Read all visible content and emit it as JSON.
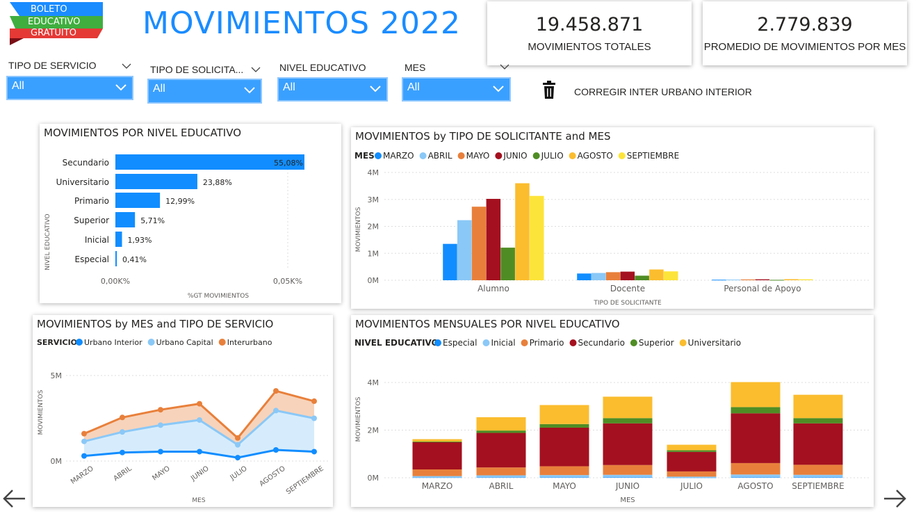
{
  "logo": {
    "line1": "BOLETO",
    "line2": "EDUCATIVO",
    "line3": "GRATUITO"
  },
  "title": "MOVIMIENTOS 2022",
  "kpis": [
    {
      "value": "19.458.871",
      "label": "MOVIMIENTOS TOTALES"
    },
    {
      "value": "2.779.839",
      "label": "PROMEDIO DE MOVIMIENTOS POR MES"
    }
  ],
  "filters": [
    {
      "label": "TIPO DE SERVICIO",
      "value": "All"
    },
    {
      "label": "TIPO DE SOLICITA...",
      "value": "All"
    },
    {
      "label": "NIVEL EDUCATIVO",
      "value": "All"
    },
    {
      "label": "MES",
      "value": "All"
    }
  ],
  "action": {
    "label": "CORREGIR INTER URBANO INTERIOR",
    "icon": "trash-icon"
  },
  "colors": {
    "accent": "#1a8cff",
    "blue": "#118dff",
    "lightblue": "#8ac8f7",
    "orange": "#e8803b",
    "darkred": "#a4101f",
    "green": "#4f8d24",
    "yellow": "#fbbd2e",
    "brightyellow": "#fde43a"
  },
  "chart_data": [
    {
      "type": "bar",
      "orientation": "horizontal",
      "title": "MOVIMIENTOS POR NIVEL EDUCATIVO",
      "xlabel": "%GT MOVIMIENTOS",
      "ylabel": "NIVEL EDUCATIVO",
      "categories": [
        "Secundario",
        "Universitario",
        "Primario",
        "Superior",
        "Inicial",
        "Especial"
      ],
      "values": [
        55.08,
        23.88,
        12.99,
        5.71,
        1.93,
        0.41
      ],
      "data_labels": [
        "55,08%",
        "23,88%",
        "12,99%",
        "5,71%",
        "1,93%",
        "0,41%"
      ],
      "x_ticks": [
        "0,00K%",
        "0,05K%"
      ]
    },
    {
      "type": "bar",
      "title": "MOVIMIENTOS by TIPO DE SOLICITANTE and MES",
      "xlabel": "TIPO DE SOLICITANTE",
      "ylabel": "MOVIMIENTOS",
      "legend_title": "MES",
      "categories": [
        "Alumno",
        "Docente",
        "Personal de Apoyo"
      ],
      "y_ticks": [
        "0M",
        "1M",
        "2M",
        "3M",
        "4M"
      ],
      "ylim": [
        0,
        4000000
      ],
      "series": [
        {
          "name": "MARZO",
          "color": "#118dff",
          "values": [
            1350000,
            250000,
            20000
          ]
        },
        {
          "name": "ABRIL",
          "color": "#8ac8f7",
          "values": [
            2230000,
            270000,
            25000
          ]
        },
        {
          "name": "MAYO",
          "color": "#e8803b",
          "values": [
            2730000,
            300000,
            30000
          ]
        },
        {
          "name": "JUNIO",
          "color": "#a4101f",
          "values": [
            3020000,
            320000,
            35000
          ]
        },
        {
          "name": "JULIO",
          "color": "#4f8d24",
          "values": [
            1210000,
            170000,
            15000
          ]
        },
        {
          "name": "AGOSTO",
          "color": "#fbbd2e",
          "values": [
            3600000,
            400000,
            40000
          ]
        },
        {
          "name": "SEPTIEMBRE",
          "color": "#fde43a",
          "values": [
            3130000,
            330000,
            35000
          ]
        }
      ]
    },
    {
      "type": "area",
      "stacked": true,
      "title": "MOVIMIENTOS by MES and TIPO DE SERVICIO",
      "xlabel": "MES",
      "ylabel": "MOVIMIENTOS",
      "legend_title": "SERVICIO",
      "categories": [
        "MARZO",
        "ABRIL",
        "MAYO",
        "JUNIO",
        "JULIO",
        "AGOSTO",
        "SEPTIEMBRE"
      ],
      "y_ticks": [
        "0M",
        "5M"
      ],
      "ylim": [
        0,
        5000000
      ],
      "series": [
        {
          "name": "Urbano Interior",
          "color": "#118dff",
          "values": [
            300000,
            500000,
            550000,
            550000,
            200000,
            650000,
            550000
          ]
        },
        {
          "name": "Urbano Capital",
          "color": "#8ac8f7",
          "values": [
            850000,
            1200000,
            1550000,
            1850000,
            750000,
            2300000,
            1950000
          ]
        },
        {
          "name": "Interurbano",
          "color": "#e8803b",
          "values": [
            450000,
            850000,
            900000,
            950000,
            400000,
            1150000,
            1000000
          ]
        }
      ]
    },
    {
      "type": "bar",
      "stacked": true,
      "title": "MOVIMIENTOS MENSUALES POR NIVEL EDUCATIVO",
      "xlabel": "MES",
      "ylabel": "MOVIMIENTOS",
      "legend_title": "NIVEL EDUCATIVO",
      "categories": [
        "MARZO",
        "ABRIL",
        "MAYO",
        "JUNIO",
        "JULIO",
        "AGOSTO",
        "SEPTIEMBRE"
      ],
      "y_ticks": [
        "0M",
        "2M",
        "4M"
      ],
      "ylim": [
        0,
        4000000
      ],
      "series": [
        {
          "name": "Especial",
          "color": "#118dff",
          "values": [
            10000,
            12000,
            13000,
            14000,
            6000,
            16000,
            14000
          ]
        },
        {
          "name": "Inicial",
          "color": "#8ac8f7",
          "values": [
            60000,
            90000,
            100000,
            110000,
            40000,
            120000,
            110000
          ]
        },
        {
          "name": "Primario",
          "color": "#e8803b",
          "values": [
            280000,
            330000,
            370000,
            410000,
            220000,
            480000,
            420000
          ]
        },
        {
          "name": "Secundario",
          "color": "#a4101f",
          "values": [
            1140000,
            1450000,
            1620000,
            1750000,
            820000,
            2090000,
            1740000
          ]
        },
        {
          "name": "Superior",
          "color": "#4f8d24",
          "values": [
            30000,
            100000,
            150000,
            220000,
            70000,
            260000,
            220000
          ]
        },
        {
          "name": "Universitario",
          "color": "#fbbd2e",
          "values": [
            100000,
            560000,
            800000,
            900000,
            230000,
            1050000,
            980000
          ]
        }
      ]
    }
  ]
}
